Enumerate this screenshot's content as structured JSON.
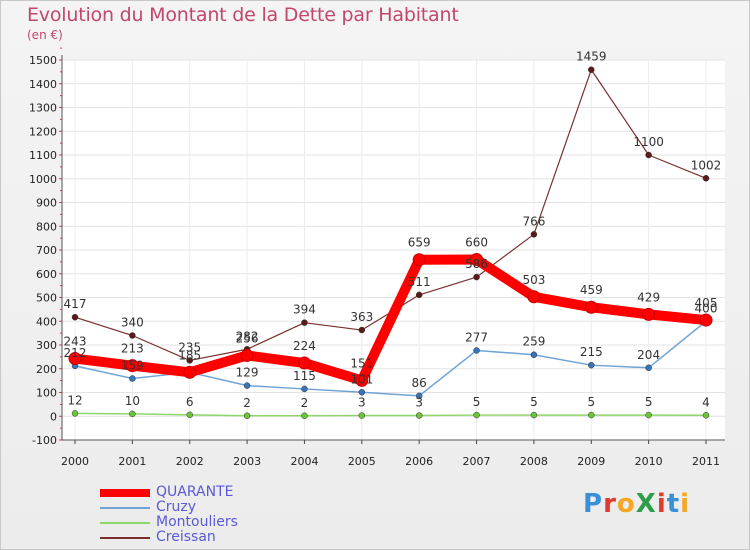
{
  "title": "Evolution du Montant de la Dette par Habitant",
  "unit": "(en €)",
  "logo": {
    "text": "ProXiti",
    "colors": [
      "#3a8fd6",
      "#e23b2a",
      "#f6a623",
      "#2f9e4a",
      "#e23b2a",
      "#3a8fd6",
      "#f6a623"
    ]
  },
  "chart_data": {
    "type": "line",
    "categories": [
      "2000",
      "2001",
      "2002",
      "2003",
      "2004",
      "2005",
      "2006",
      "2007",
      "2008",
      "2009",
      "2010",
      "2011"
    ],
    "ylim": [
      -100,
      1500
    ],
    "yticks": [
      -100,
      0,
      100,
      200,
      300,
      400,
      500,
      600,
      700,
      800,
      900,
      1000,
      1100,
      1200,
      1300,
      1400,
      1500
    ],
    "grid": true,
    "legend_position": "bottom-left",
    "series": [
      {
        "name": "QUARANTE",
        "color": "#ff0000",
        "marker": "#ff0000",
        "width": 10,
        "values": [
          243,
          213,
          185,
          256,
          224,
          151,
          659,
          660,
          503,
          459,
          429,
          405
        ],
        "labels": [
          "243",
          "213",
          "185",
          "256",
          "224",
          "151",
          "659",
          "660",
          "503",
          "459",
          "429",
          "405"
        ]
      },
      {
        "name": "Cruzy",
        "color": "#6fa3d6",
        "marker": "#3a73b8",
        "width": 1.5,
        "values": [
          212,
          159,
          185,
          129,
          115,
          101,
          86,
          277,
          259,
          215,
          204,
          400
        ],
        "labels": [
          "212",
          "159",
          "",
          "129",
          "115",
          "101",
          "86",
          "277",
          "259",
          "215",
          "204",
          "400"
        ]
      },
      {
        "name": "Montouliers",
        "color": "#8fd66a",
        "marker": "#6cc43a",
        "width": 1.5,
        "values": [
          12,
          10,
          6,
          2,
          2,
          3,
          3,
          5,
          5,
          5,
          5,
          4
        ],
        "labels": [
          "12",
          "10",
          "6",
          "2",
          "2",
          "3",
          "3",
          "5",
          "5",
          "5",
          "5",
          "4"
        ]
      },
      {
        "name": "Creissan",
        "color": "#7a3030",
        "marker": "#5a1a1a",
        "width": 1.2,
        "values": [
          417,
          340,
          235,
          282,
          394,
          363,
          511,
          586,
          766,
          1459,
          1100,
          1002
        ],
        "labels": [
          "417",
          "340",
          "235",
          "282",
          "394",
          "363",
          "511",
          "586",
          "766",
          "1459",
          "1100",
          "1002"
        ]
      }
    ]
  }
}
